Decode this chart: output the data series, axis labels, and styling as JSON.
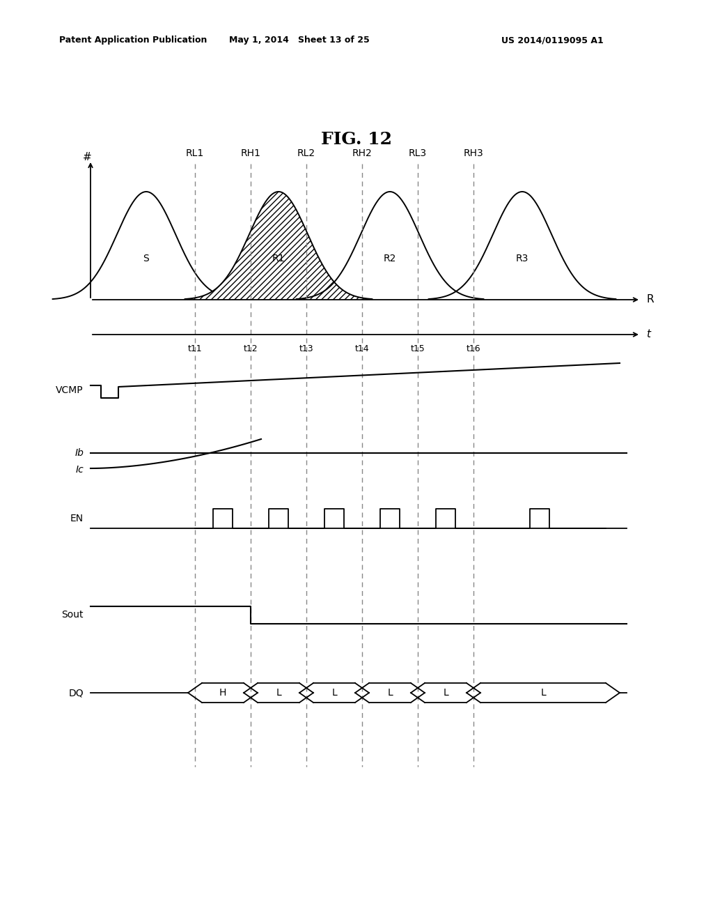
{
  "title": "FIG. 12",
  "header_left": "Patent Application Publication",
  "header_mid": "May 1, 2014   Sheet 13 of 25",
  "header_right": "US 2014/0119095 A1",
  "background_color": "#ffffff",
  "text_color": "#000000",
  "dashed_color": "#888888",
  "bell_col_labels": [
    "RL1",
    "RH1",
    "RL2",
    "RH2",
    "RL3",
    "RH3"
  ],
  "bell_inner_labels": [
    "S",
    "R1",
    "R2",
    "R3"
  ],
  "time_labels": [
    "t11",
    "t12",
    "t13",
    "t14",
    "t15",
    "t16"
  ],
  "dq_values": [
    "H",
    "L",
    "L",
    "L",
    "L",
    "L"
  ]
}
